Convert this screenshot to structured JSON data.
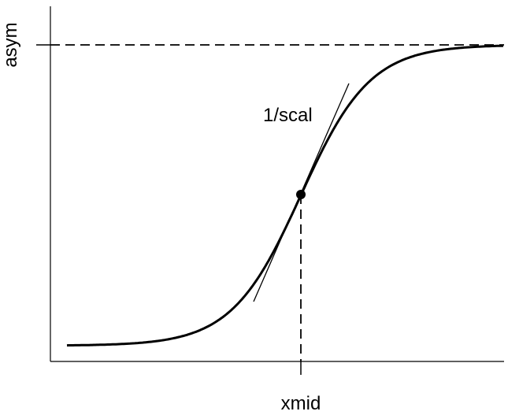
{
  "labels": {
    "y_axis": "asym",
    "x_axis": "xmid",
    "slope": "1/scal"
  },
  "colors": {
    "ink": "#000000",
    "background": "#ffffff"
  }
}
